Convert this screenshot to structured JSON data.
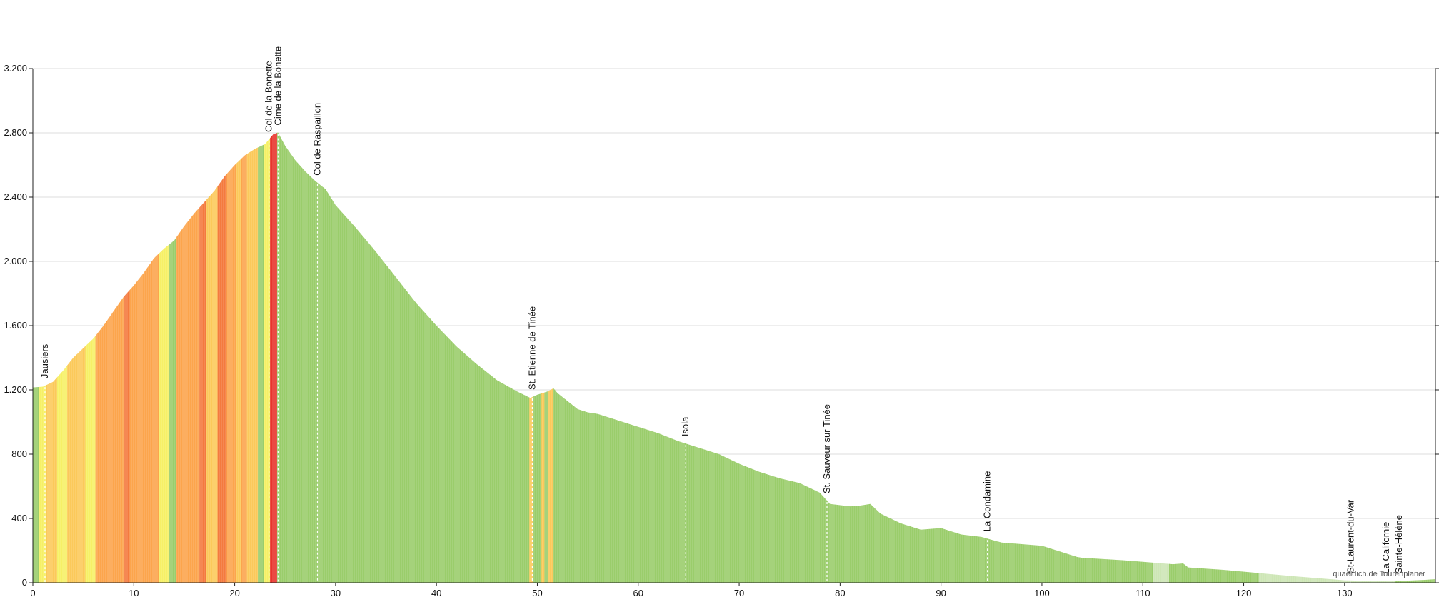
{
  "chart_data": {
    "type": "area",
    "title": "",
    "xlabel": "",
    "ylabel": "",
    "xlim": [
      0,
      139
    ],
    "ylim": [
      0,
      3200
    ],
    "x_ticks": [
      0,
      10,
      20,
      30,
      40,
      50,
      60,
      70,
      80,
      90,
      100,
      110,
      120,
      130
    ],
    "x_tick_labels": [
      "0",
      "10",
      "20",
      "30",
      "40",
      "50",
      "60",
      "70",
      "80",
      "90",
      "100",
      "110",
      "120",
      "130"
    ],
    "y_ticks": [
      0,
      400,
      800,
      1200,
      1600,
      2000,
      2400,
      2800,
      3200
    ],
    "y_tick_labels": [
      "0",
      "400",
      "800",
      "1.200",
      "1.600",
      "2.000",
      "2.400",
      "2.800",
      "3.200"
    ],
    "grid": true,
    "profile": {
      "x": [
        0,
        1,
        2,
        3,
        4,
        5,
        6,
        7,
        8,
        9,
        10,
        11,
        12,
        13,
        14,
        15,
        16,
        17,
        18,
        19,
        20,
        21,
        22,
        23,
        23.8,
        24.3,
        25,
        26,
        27,
        28,
        29,
        30,
        32,
        34,
        36,
        38,
        40,
        42,
        44,
        46,
        48,
        49.3,
        50,
        51,
        51.6,
        52,
        54,
        55,
        56,
        58,
        60,
        62,
        64,
        66,
        68,
        70,
        72,
        74,
        76,
        78,
        79,
        81,
        82,
        83,
        84,
        86,
        88,
        90,
        92,
        94,
        96,
        98,
        100,
        102,
        103.5,
        104,
        108,
        111,
        113,
        114,
        114.5,
        118,
        121.5,
        125,
        130,
        133,
        136,
        138,
        139
      ],
      "elevation": [
        1215,
        1220,
        1250,
        1320,
        1400,
        1460,
        1520,
        1600,
        1690,
        1780,
        1850,
        1930,
        2020,
        2080,
        2130,
        2220,
        2300,
        2370,
        2440,
        2530,
        2600,
        2660,
        2700,
        2730,
        2790,
        2802,
        2720,
        2630,
        2560,
        2500,
        2450,
        2350,
        2210,
        2060,
        1900,
        1740,
        1600,
        1470,
        1360,
        1260,
        1190,
        1150,
        1170,
        1190,
        1210,
        1180,
        1080,
        1060,
        1050,
        1010,
        970,
        930,
        880,
        840,
        800,
        740,
        690,
        650,
        620,
        560,
        490,
        475,
        480,
        490,
        430,
        370,
        330,
        340,
        300,
        285,
        250,
        240,
        230,
        190,
        160,
        155,
        140,
        125,
        115,
        120,
        95,
        80,
        60,
        40,
        15,
        10,
        12,
        18,
        22
      ]
    },
    "gradient_bands": [
      {
        "from": 0,
        "to": 0.6,
        "level": "flat"
      },
      {
        "from": 0.6,
        "to": 1.3,
        "level": "easy"
      },
      {
        "from": 1.3,
        "to": 2.4,
        "level": "moderate"
      },
      {
        "from": 2.4,
        "to": 3.4,
        "level": "easy"
      },
      {
        "from": 3.4,
        "to": 5.2,
        "level": "moderate"
      },
      {
        "from": 5.2,
        "to": 6.2,
        "level": "easy"
      },
      {
        "from": 6.2,
        "to": 9,
        "level": "hard"
      },
      {
        "from": 9,
        "to": 9.6,
        "level": "steep"
      },
      {
        "from": 9.6,
        "to": 12.5,
        "level": "hard"
      },
      {
        "from": 12.5,
        "to": 13.5,
        "level": "easy"
      },
      {
        "from": 13.5,
        "to": 14.2,
        "level": "flat"
      },
      {
        "from": 14.2,
        "to": 16.5,
        "level": "hard"
      },
      {
        "from": 16.5,
        "to": 17.2,
        "level": "steep"
      },
      {
        "from": 17.2,
        "to": 18.3,
        "level": "moderate"
      },
      {
        "from": 18.3,
        "to": 19.2,
        "level": "steep"
      },
      {
        "from": 19.2,
        "to": 20.1,
        "level": "hard"
      },
      {
        "from": 20.1,
        "to": 20.6,
        "level": "moderate"
      },
      {
        "from": 20.6,
        "to": 21.2,
        "level": "hard"
      },
      {
        "from": 21.2,
        "to": 22.3,
        "level": "moderate"
      },
      {
        "from": 22.3,
        "to": 22.9,
        "level": "flat"
      },
      {
        "from": 22.9,
        "to": 23.5,
        "level": "easy"
      },
      {
        "from": 23.5,
        "to": 24.2,
        "level": "extreme"
      },
      {
        "from": 24.2,
        "to": 49.2,
        "level": "flat"
      },
      {
        "from": 49.2,
        "to": 49.6,
        "level": "moderate"
      },
      {
        "from": 49.6,
        "to": 50.4,
        "level": "flat"
      },
      {
        "from": 50.4,
        "to": 50.7,
        "level": "moderate"
      },
      {
        "from": 50.7,
        "to": 51.1,
        "level": "flat"
      },
      {
        "from": 51.1,
        "to": 51.6,
        "level": "moderate"
      },
      {
        "from": 51.6,
        "to": 111,
        "level": "flat"
      },
      {
        "from": 111,
        "to": 112.6,
        "level": "unknown"
      },
      {
        "from": 112.6,
        "to": 121.5,
        "level": "flat"
      },
      {
        "from": 121.5,
        "to": 135,
        "level": "unknown"
      },
      {
        "from": 135,
        "to": 139,
        "level": "flat"
      }
    ],
    "gradient_colors": {
      "flat": "#9acd6b",
      "easy": "#f6f066",
      "moderate": "#fbc95a",
      "hard": "#fca54c",
      "steep": "#f47a3e",
      "extreme": "#e8342c",
      "unknown": "#cde6b5"
    },
    "waypoints": [
      {
        "x": 1.2,
        "name": "Jausiers"
      },
      {
        "x": 23.4,
        "name": "Col de la Bonette"
      },
      {
        "x": 24.3,
        "name": "Cime de la Bonette"
      },
      {
        "x": 28.2,
        "name": "Col de Raspaillon"
      },
      {
        "x": 49.5,
        "name": "St. Etienne de Tinée"
      },
      {
        "x": 64.7,
        "name": "Isola"
      },
      {
        "x": 78.7,
        "name": "St. Sauveur sur Tinée"
      },
      {
        "x": 94.6,
        "name": "La Condamine"
      },
      {
        "x": 130.6,
        "name": "St-Laurent-du-Var"
      },
      {
        "x": 134.1,
        "name": "La Californie"
      },
      {
        "x": 135.4,
        "name": "Sainte-Hélène"
      }
    ],
    "credit": "quaeldich.de Tourenplaner"
  }
}
